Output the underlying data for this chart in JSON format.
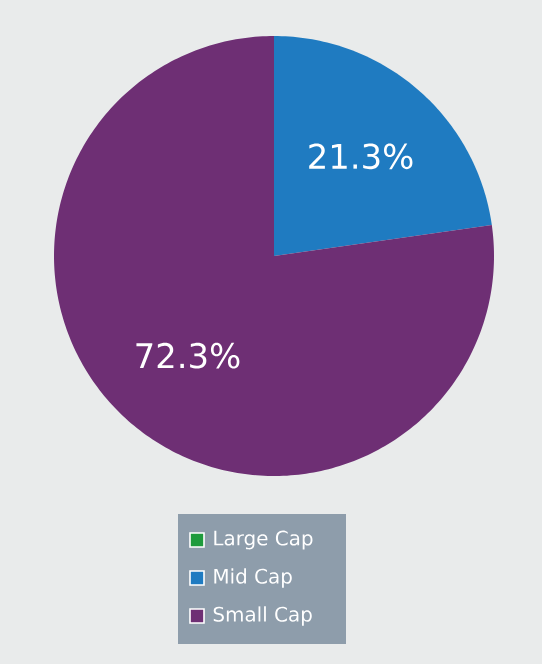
{
  "chart_data": {
    "type": "pie",
    "categories": [
      "Large Cap",
      "Mid Cap",
      "Small Cap"
    ],
    "values": [
      0,
      21.3,
      72.3
    ],
    "colors": [
      "#1e9b3c",
      "#1f7bc1",
      "#6e2f74"
    ],
    "value_labels": [
      null,
      "21.3%",
      "72.3%"
    ],
    "legend": "bottom"
  }
}
